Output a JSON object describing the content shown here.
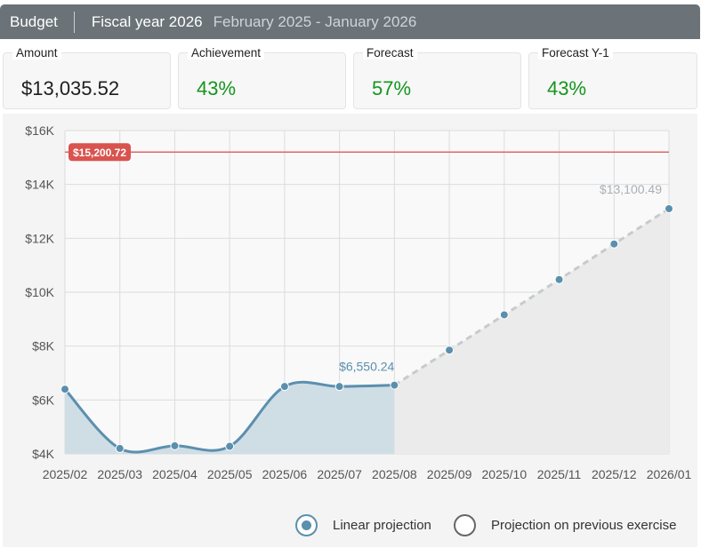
{
  "header": {
    "title": "Budget",
    "fiscal_year": "Fiscal year 2026",
    "period": "February 2025 - January 2026"
  },
  "stats": [
    {
      "label": "Amount",
      "value": "$13,035.52",
      "color": "#1e1e1e"
    },
    {
      "label": "Achievement",
      "value": "43%",
      "color": "#14951e"
    },
    {
      "label": "Forecast",
      "value": "57%",
      "color": "#14951e"
    },
    {
      "label": "Forecast Y-1",
      "value": "43%",
      "color": "#14951e"
    }
  ],
  "legend": {
    "linear_label": "Linear projection",
    "linear_selected": true,
    "previous_label": "Projection on previous exercise",
    "previous_selected": false
  },
  "colors": {
    "actual_line": "#5b8fae",
    "actual_fill": "#cfdde5",
    "projection_line": "#c8cbcd",
    "projection_fill": "#ebebeb",
    "budget_line": "#e06666",
    "budget_badge": "#d9534f"
  },
  "chart_data": {
    "type": "area",
    "categories": [
      "2025/02",
      "2025/03",
      "2025/04",
      "2025/05",
      "2025/06",
      "2025/07",
      "2025/08",
      "2025/09",
      "2025/10",
      "2025/11",
      "2025/12",
      "2026/01"
    ],
    "y_ticks": [
      "$4K",
      "$6K",
      "$8K",
      "$10K",
      "$12K",
      "$14K",
      "$16K"
    ],
    "ylim": [
      4000,
      16000
    ],
    "grid": true,
    "series": [
      {
        "name": "",
        "style": "solid",
        "values": [
          6400,
          4200,
          4300,
          4280,
          6500,
          6500,
          6550.24,
          null,
          null,
          null,
          null,
          null
        ]
      },
      {
        "name": "",
        "style": "dashed",
        "values": [
          null,
          null,
          null,
          null,
          null,
          null,
          6550.24,
          7850,
          9160,
          10470,
          11790,
          13100.49
        ]
      }
    ],
    "budget_line": {
      "value": 15200.72,
      "label": "$15,200.72"
    },
    "annotations": [
      {
        "x": "2025/08",
        "y": 6550.24,
        "text": "$6,550.24"
      },
      {
        "x": "2026/01",
        "y": 13100.49,
        "text": "$13,100.49"
      }
    ]
  }
}
